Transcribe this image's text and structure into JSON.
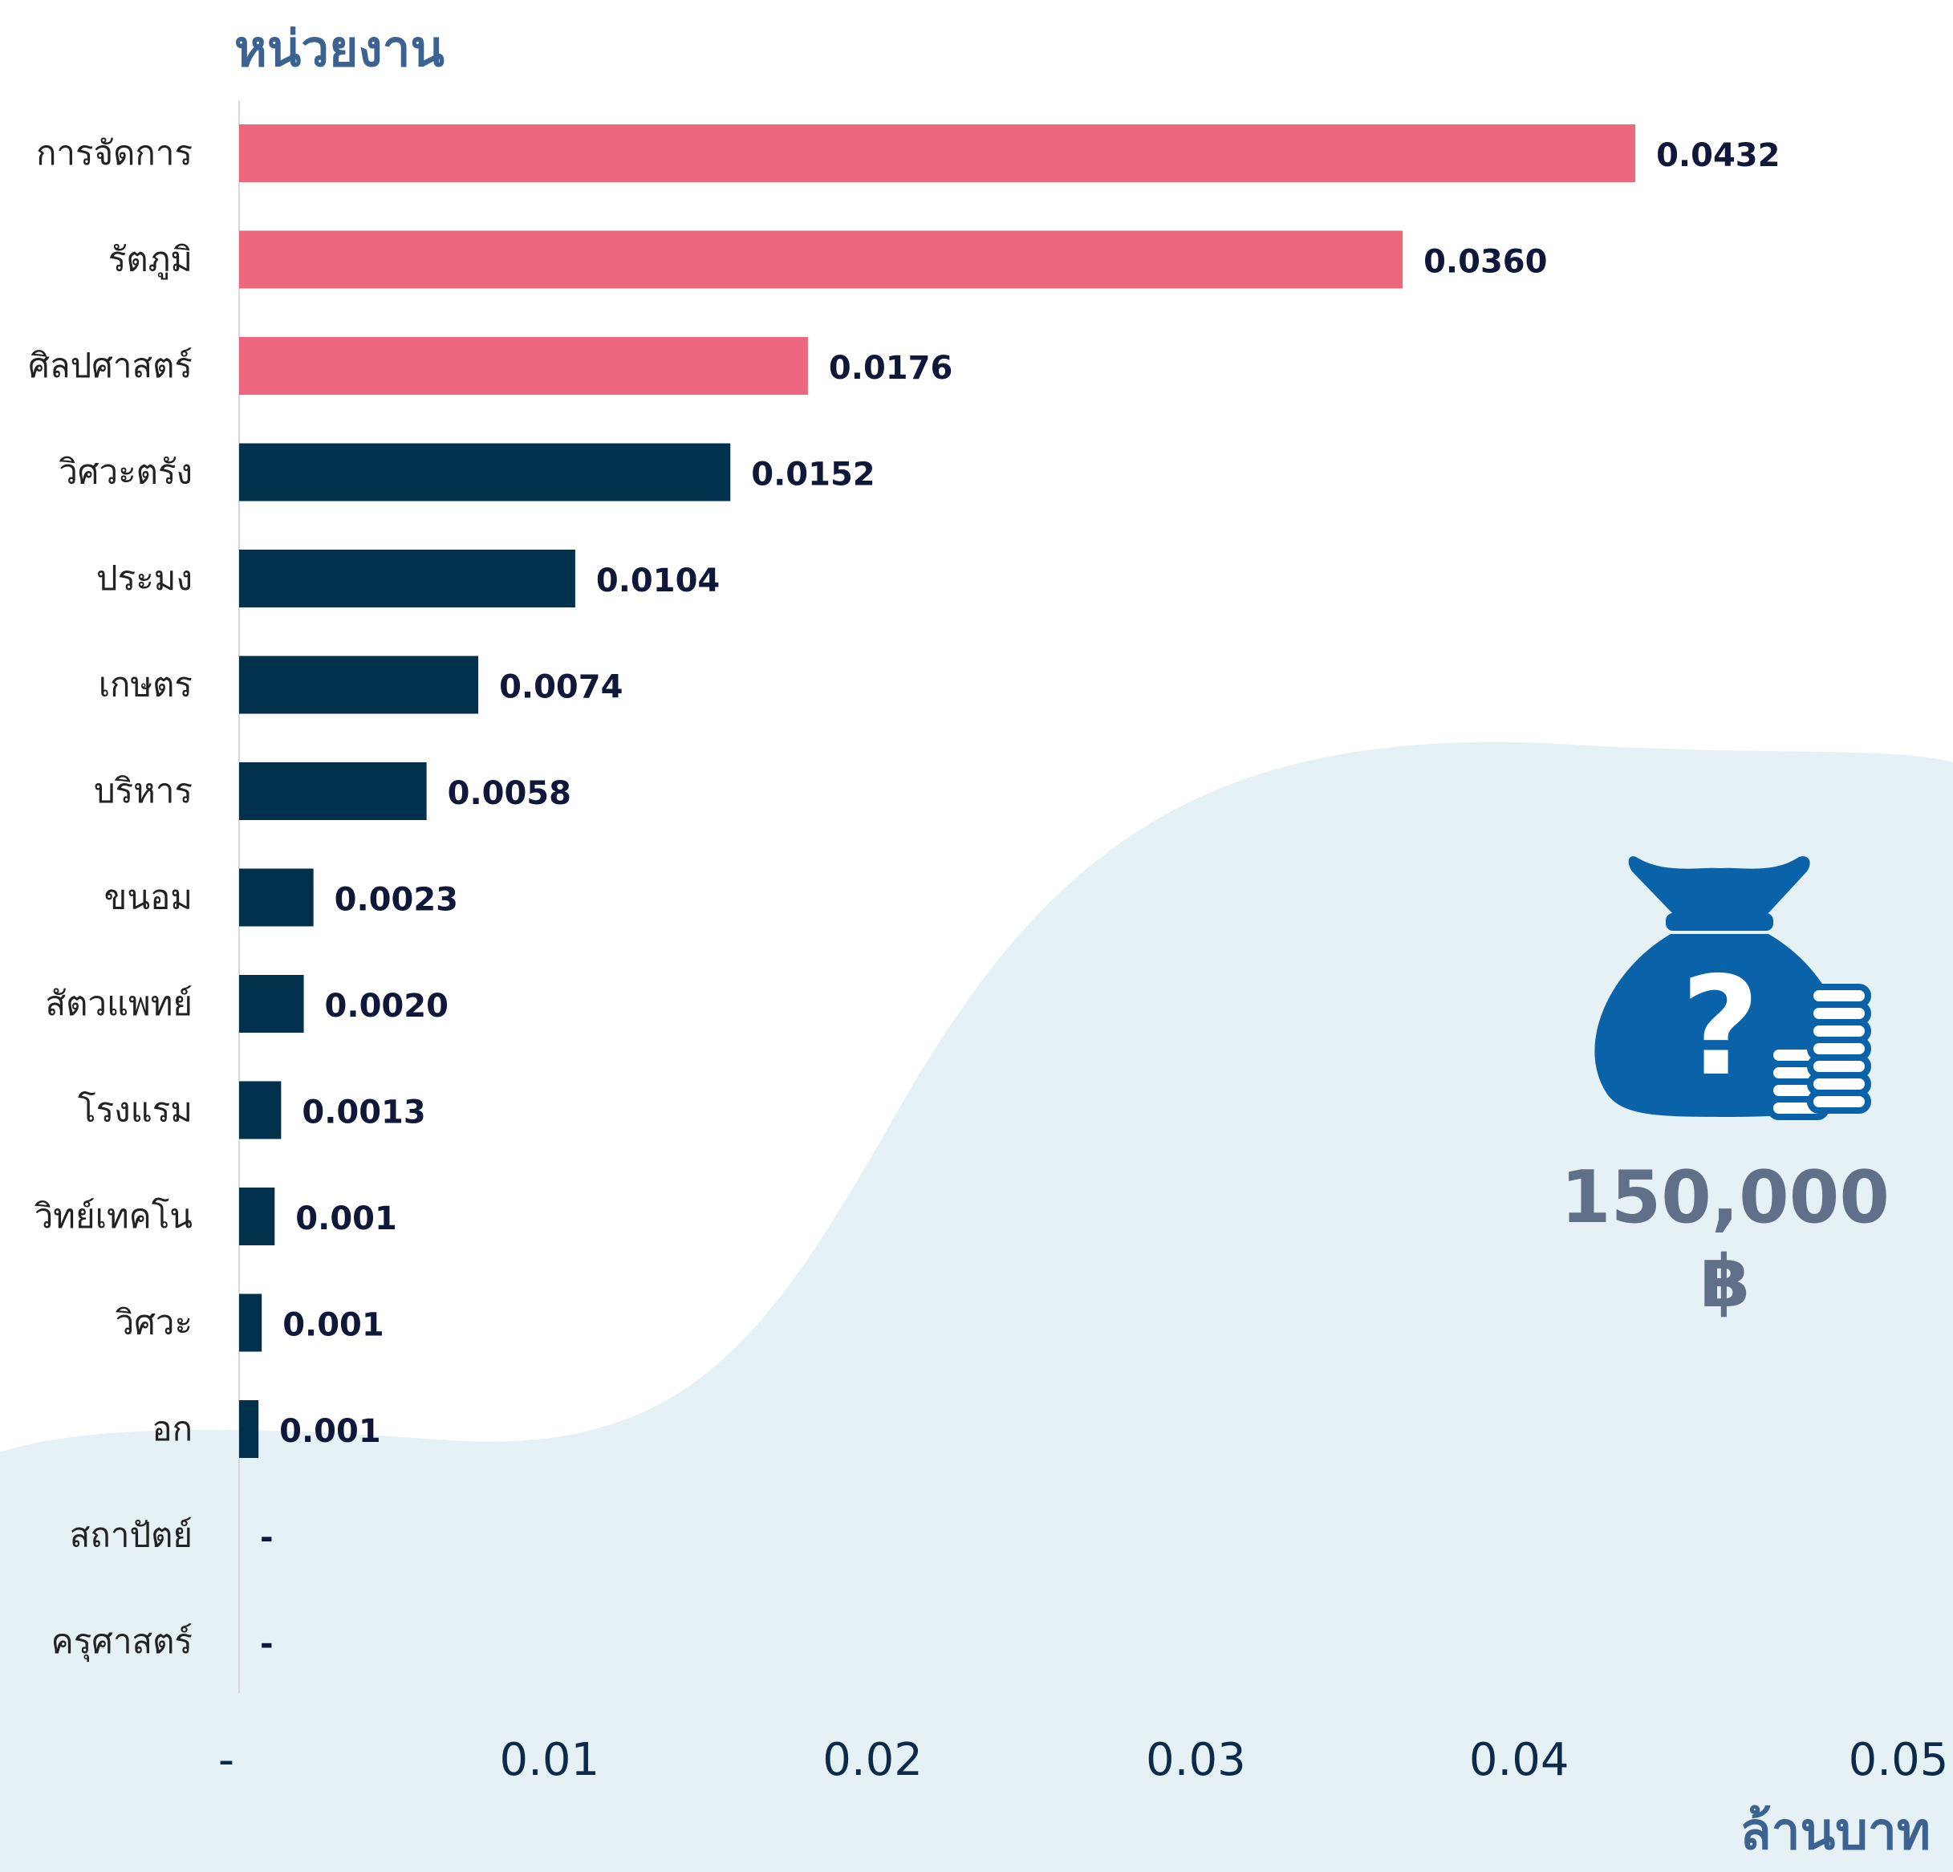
{
  "chart_data": {
    "type": "bar",
    "orientation": "horizontal",
    "ylabel": "หน่วยงาน",
    "xlabel": "ล้านบาท",
    "xlim": [
      0,
      0.05
    ],
    "x_ticks": [
      "-",
      "0.01",
      "0.02",
      "0.03",
      "0.04",
      "0.05"
    ],
    "grid": false,
    "highlight_color": "#ed687e",
    "base_color": "#02314e",
    "bars": [
      {
        "category": "การจัดการ",
        "value": 0.0432,
        "label": "0.0432",
        "highlight": true
      },
      {
        "category": "รัตภูมิ",
        "value": 0.036,
        "label": "0.0360",
        "highlight": true
      },
      {
        "category": "ศิลปศาสตร์",
        "value": 0.0176,
        "label": "0.0176",
        "highlight": true
      },
      {
        "category": "วิศวะตรัง",
        "value": 0.0152,
        "label": "0.0152",
        "highlight": false
      },
      {
        "category": "ประมง",
        "value": 0.0104,
        "label": "0.0104",
        "highlight": false
      },
      {
        "category": "เกษตร",
        "value": 0.0074,
        "label": "0.0074",
        "highlight": false
      },
      {
        "category": "บริหาร",
        "value": 0.0058,
        "label": "0.0058",
        "highlight": false
      },
      {
        "category": "ขนอม",
        "value": 0.0023,
        "label": "0.0023",
        "highlight": false
      },
      {
        "category": "สัตวแพทย์",
        "value": 0.002,
        "label": "0.0020",
        "highlight": false
      },
      {
        "category": "โรงแรม",
        "value": 0.0013,
        "label": "0.0013",
        "highlight": false
      },
      {
        "category": "วิทย์เทคโน",
        "value": 0.0011,
        "label": "0.001",
        "highlight": false
      },
      {
        "category": "วิศวะ",
        "value": 0.0007,
        "label": "0.001",
        "highlight": false
      },
      {
        "category": "อก",
        "value": 0.0006,
        "label": "0.001",
        "highlight": false
      },
      {
        "category": "สถาปัตย์",
        "value": 0,
        "label": "-",
        "highlight": false
      },
      {
        "category": "ครุศาสตร์",
        "value": 0,
        "label": "-",
        "highlight": false
      }
    ]
  },
  "budget": {
    "amount": "150,000 ฿",
    "icon": "money-bag-question-icon",
    "icon_color": "#0a62a8"
  },
  "background_color": "#e5f1f5"
}
